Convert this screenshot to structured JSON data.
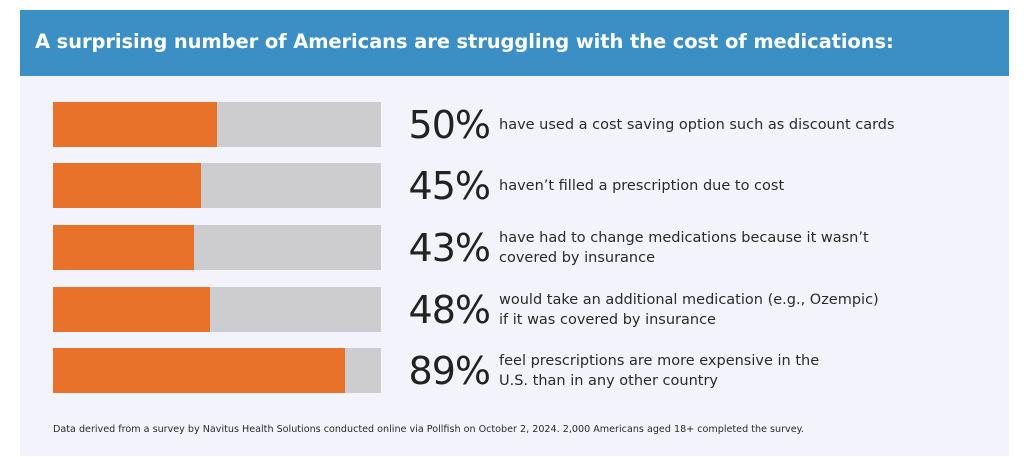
{
  "header": {
    "title": "A surprising number of Americans are struggling with the cost of medications:"
  },
  "colors": {
    "header_bg": "#3b8fc4",
    "bar_fill": "#e8722a",
    "bar_track": "#cdcdd0",
    "panel_bg": "#f3f4fb"
  },
  "chart_data": {
    "type": "bar",
    "orientation": "horizontal",
    "title": "A surprising number of Americans are struggling with the cost of medications:",
    "xlim": [
      0,
      100
    ],
    "grid": false,
    "unit": "%",
    "categories": [
      "have used a cost saving option such as discount cards",
      "haven't filled a prescription due to cost",
      "have had to change medications because it wasn't covered by insurance",
      "would take an additional medication (e.g., Ozempic) if it was covered by insurance",
      "feel prescriptions are more expensive in the U.S. than in any other country"
    ],
    "values": [
      50,
      45,
      43,
      48,
      89
    ],
    "rows": [
      {
        "value": 50,
        "label": "50%",
        "lines": [
          "have used a cost saving option such as discount cards"
        ]
      },
      {
        "value": 45,
        "label": "45%",
        "lines": [
          "haven’t filled a prescription due to cost"
        ]
      },
      {
        "value": 43,
        "label": "43%",
        "lines": [
          "have had to change medications because it wasn’t",
          "covered by insurance"
        ]
      },
      {
        "value": 48,
        "label": "48%",
        "lines": [
          "would take an additional medication (e.g., Ozempic)",
          "if it was covered by insurance"
        ]
      },
      {
        "value": 89,
        "label": "89%",
        "lines": [
          "feel prescriptions are more expensive in the",
          "U.S. than in any other country"
        ]
      }
    ],
    "footnote": "Data derived from a survey by Navitus Health Solutions conducted online via Pollfish on October 2, 2024. 2,000 Americans aged 18+ completed the survey."
  }
}
